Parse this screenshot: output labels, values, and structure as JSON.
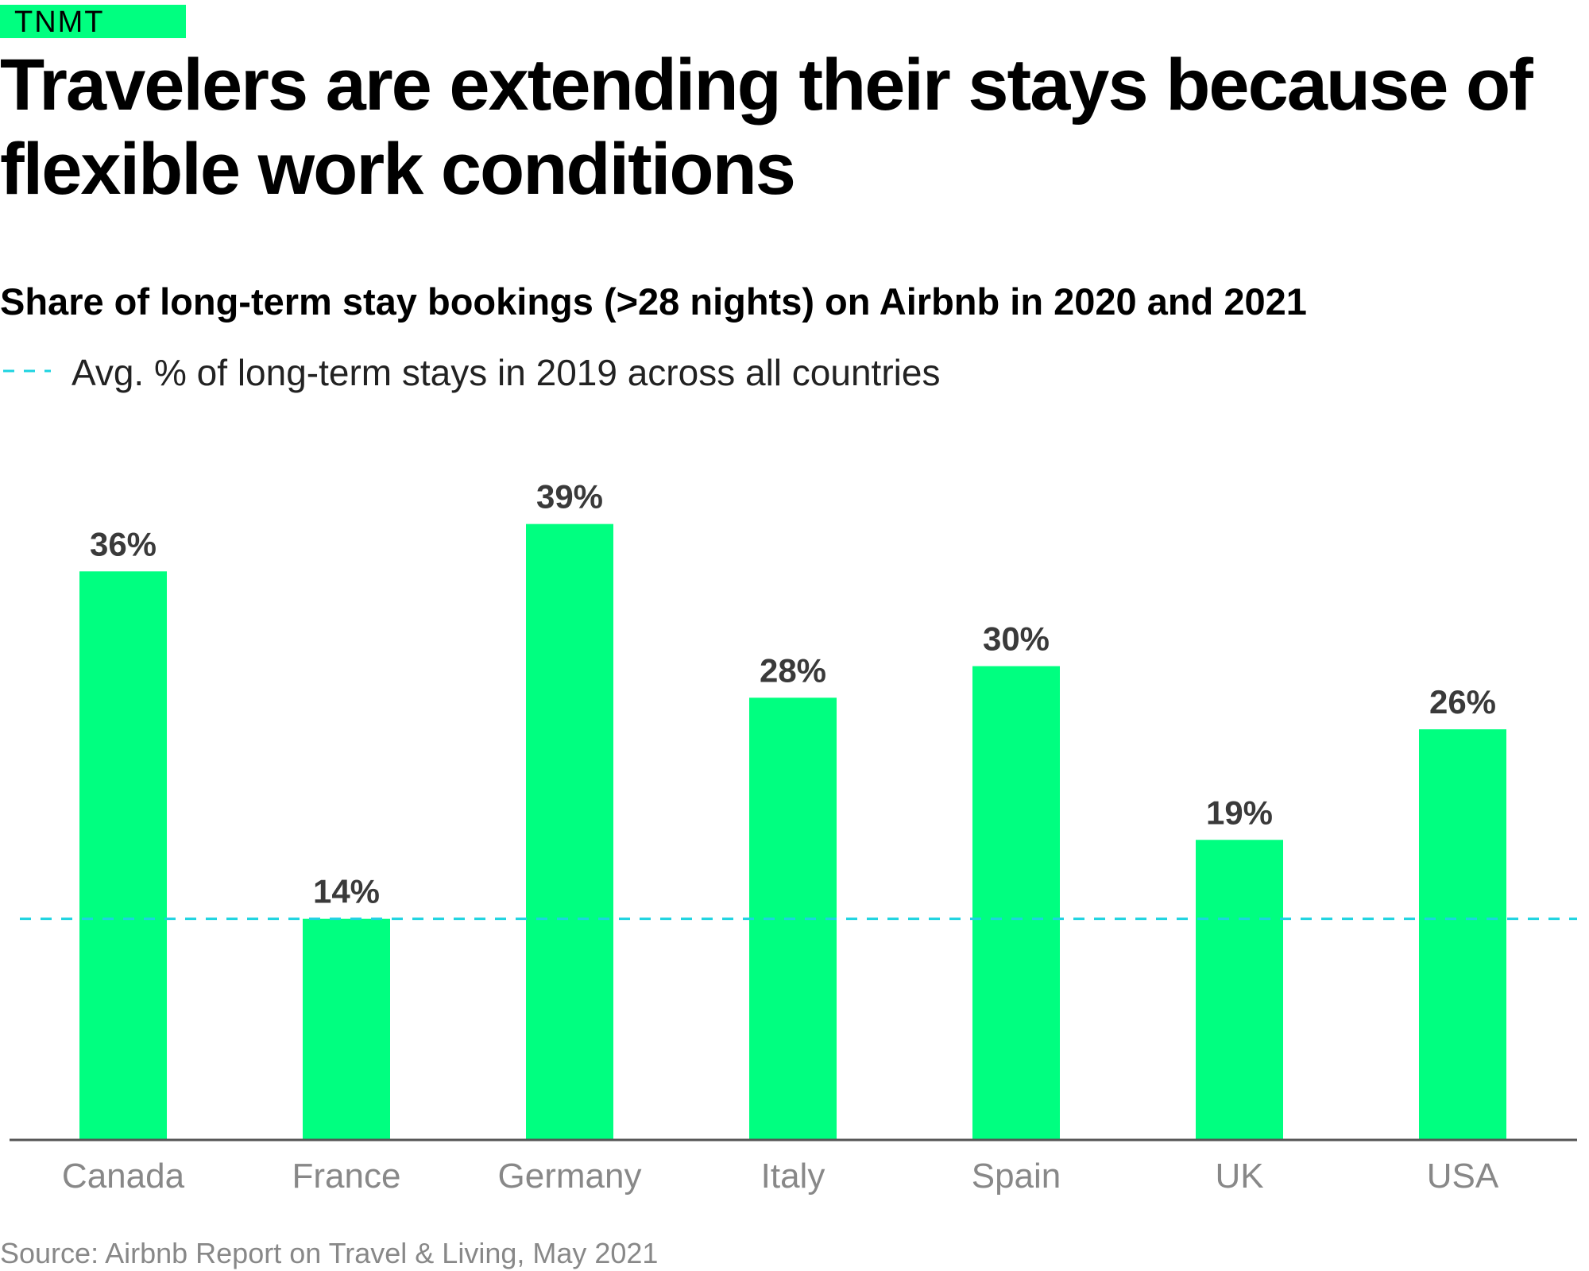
{
  "brand": {
    "label": "TNMT"
  },
  "header": {
    "title": "Travelers are extending their stays because of flexible work conditions",
    "subtitle": "Share of long-term stay bookings (>28 nights) on Airbnb in 2020 and 2021"
  },
  "legend": {
    "reference_line_label": "Avg. % of long-term stays in 2019 across all countries"
  },
  "colors": {
    "bar": "#00ff80",
    "reference_line": "#1dd3e0",
    "axis": "#555555",
    "value_label": "#3a3a3a",
    "tick_label": "#888888"
  },
  "chart_data": {
    "type": "bar",
    "categories": [
      "Canada",
      "France",
      "Germany",
      "Italy",
      "Spain",
      "UK",
      "USA"
    ],
    "values": [
      36,
      14,
      39,
      28,
      30,
      19,
      26
    ],
    "data_labels": [
      "36%",
      "14%",
      "39%",
      "28%",
      "30%",
      "19%",
      "26%"
    ],
    "ylim": [
      0,
      42
    ],
    "reference_line": {
      "value": 14,
      "style": "dashed"
    },
    "grid": false,
    "legend_placement": "top-left"
  },
  "footer": {
    "source": "Source: Airbnb Report on Travel & Living, May 2021"
  }
}
